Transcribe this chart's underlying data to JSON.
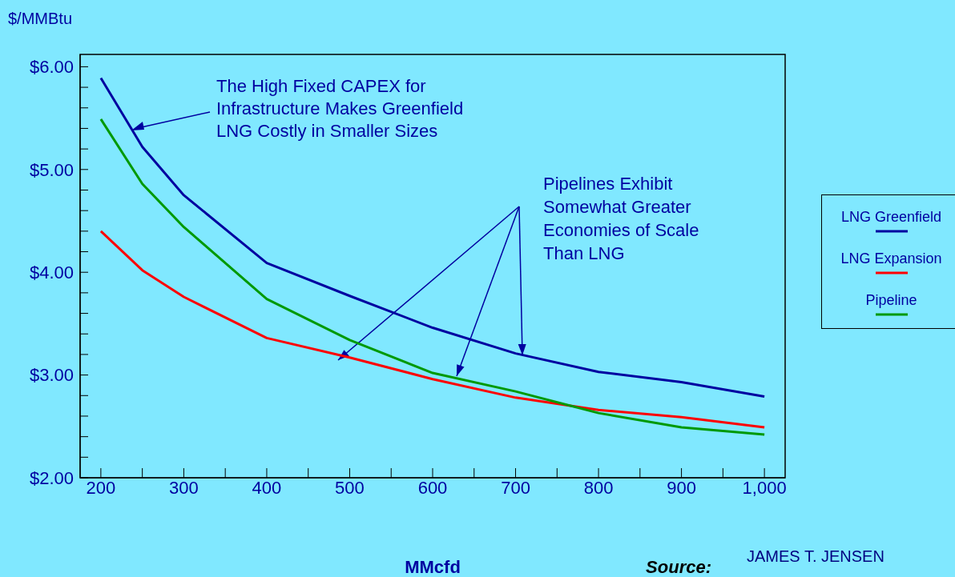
{
  "chart_data": {
    "type": "line",
    "ylabel": "$/MMBtu",
    "xlabel": "MMcfd",
    "x": [
      200,
      250,
      300,
      400,
      500,
      600,
      700,
      800,
      900,
      1000
    ],
    "series": [
      {
        "name": "LNG Greenfield",
        "color": "#0000a0",
        "values": [
          5.89,
          5.22,
          4.75,
          4.09,
          3.77,
          3.46,
          3.21,
          3.03,
          2.93,
          2.79
        ]
      },
      {
        "name": "LNG Expansion",
        "color": "#ff0000",
        "values": [
          4.4,
          4.02,
          3.76,
          3.36,
          3.17,
          2.96,
          2.78,
          2.66,
          2.59,
          2.49
        ]
      },
      {
        "name": "Pipeline",
        "color": "#009900",
        "values": [
          5.49,
          4.86,
          4.44,
          3.74,
          3.34,
          3.02,
          2.84,
          2.63,
          2.49,
          2.42
        ]
      }
    ],
    "xlim": [
      175,
      1025
    ],
    "xticks": [
      200,
      {
        "value": 250,
        "label": null
      },
      300,
      {
        "value": 350,
        "label": null
      },
      400,
      {
        "value": 450,
        "label": null
      },
      500,
      {
        "value": 550,
        "label": null
      },
      600,
      {
        "value": 650,
        "label": null
      },
      700,
      {
        "value": 750,
        "label": null
      },
      800,
      {
        "value": 850,
        "label": null
      },
      900,
      {
        "value": 950,
        "label": null
      },
      {
        "value": 1000,
        "label": "1,000"
      }
    ],
    "ylim": [
      2,
      6.12
    ],
    "yticks": [
      {
        "value": 2,
        "label": "$2.00"
      },
      {
        "value": 2.2,
        "label": null
      },
      {
        "value": 2.4,
        "label": null
      },
      {
        "value": 2.6,
        "label": null
      },
      {
        "value": 2.8,
        "label": null
      },
      {
        "value": 3,
        "label": "$3.00"
      },
      {
        "value": 3.2,
        "label": null
      },
      {
        "value": 3.4,
        "label": null
      },
      {
        "value": 3.6,
        "label": null
      },
      {
        "value": 3.8,
        "label": null
      },
      {
        "value": 4,
        "label": "$4.00"
      },
      {
        "value": 4.2,
        "label": null
      },
      {
        "value": 4.4,
        "label": null
      },
      {
        "value": 4.6,
        "label": null
      },
      {
        "value": 4.8,
        "label": null
      },
      {
        "value": 5,
        "label": "$5.00"
      },
      {
        "value": 5.2,
        "label": null
      },
      {
        "value": 5.4,
        "label": null
      },
      {
        "value": 5.6,
        "label": null
      },
      {
        "value": 5.8,
        "label": null
      },
      {
        "value": 6,
        "label": "$6.00"
      }
    ],
    "grid": false,
    "legend": "right",
    "marker": "none",
    "line_style": "solid",
    "annotations": [
      "The High Fixed CAPEX for\nInfrastructure Makes Greenfield\nLNG Costly in Smaller Sizes",
      "Pipelines Exhibit\nSomewhat Greater\nEconomies of Scale\nThan LNG",
      "Source:",
      "JAMES T. JENSEN"
    ]
  }
}
